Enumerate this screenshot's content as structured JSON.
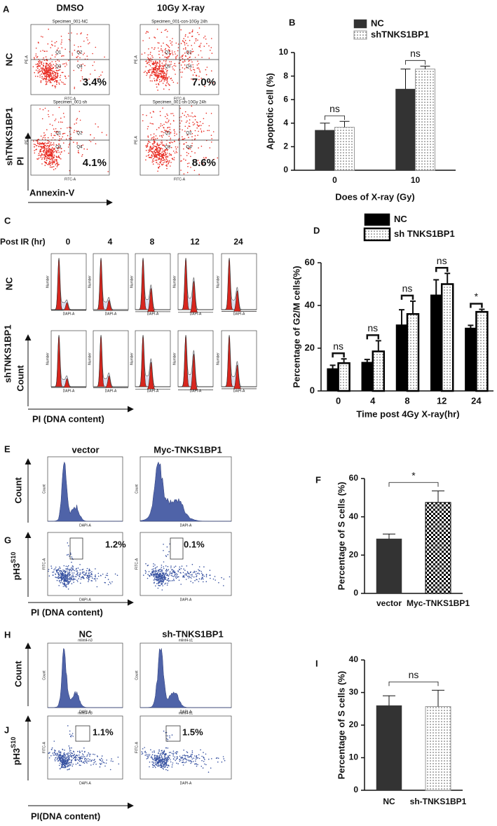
{
  "panel_a": {
    "letter": "A",
    "columns": [
      "DMSO",
      "10Gy X-ray"
    ],
    "rows": [
      "NC",
      "shTNKS1BP1"
    ],
    "y_label": "PI",
    "x_label": "Annexin-V",
    "plot_x_label": "FITC-A",
    "plot_y_label": "PE-A",
    "quadrants": [
      "Q1",
      "Q2",
      "Q3",
      "Q4"
    ],
    "plots": [
      {
        "title": "Specimen_001-NC",
        "percent": "3.4%"
      },
      {
        "title": "Specimen_001-con-10Gy 24h",
        "percent": "7.0%"
      },
      {
        "title": "Specimen_001-sh",
        "percent": "4.1%"
      },
      {
        "title": "Specimen_001-sh-10Gy 24h",
        "percent": "8.6%"
      }
    ]
  },
  "panel_c": {
    "letter": "C",
    "time_label": "Post IR (hr)",
    "times": [
      "0",
      "4",
      "8",
      "12",
      "24"
    ],
    "rows": [
      "NC",
      "shTNKS1BP1"
    ],
    "y_label": "Count",
    "x_label": "PI (DNA content)",
    "plot_y_label": "Number",
    "plot_x_label": "DAPI-A"
  },
  "panel_eg": {
    "letters": [
      "E",
      "G"
    ],
    "columns": [
      "vector",
      "Myc-TNKS1BP1"
    ],
    "hist_y_label": "Count",
    "scatter_y_label": "pH3",
    "scatter_y_sup": "S10",
    "x_label": "PI (DNA content)",
    "plot_x_label": "DAPI-A",
    "hist_plot_y_label": "Count",
    "scatter_plot_y_label": "FITC-A",
    "gate_percents": [
      "1.2%",
      "0.1%"
    ]
  },
  "panel_hj": {
    "letters": [
      "H",
      "J"
    ],
    "columns": [
      "NC",
      "sh-TNKS1BP1"
    ],
    "plot_titles": [
      "mlint4-n3",
      "mlint4-s1"
    ],
    "hist_y_label": "Count",
    "scatter_y_label": "pH3",
    "scatter_y_sup": "S10",
    "x_label": "PI(DNA content)",
    "plot_x_label": "DAPI-A",
    "hist_plot_y_label": "Count",
    "scatter_plot_y_label": "FITC-A",
    "gate_percents": [
      "1.1%",
      "1.5%"
    ]
  },
  "chart_data": [
    {
      "type": "bar",
      "label": "B",
      "y_label": "Apoptotic cell (%)",
      "x_label": "Does of X-ray (Gy)",
      "categories": [
        "0",
        "10"
      ],
      "series": [
        {
          "name": "NC",
          "fill": "solid",
          "color": "#333333",
          "values": [
            3.4,
            6.9
          ],
          "errors": [
            0.6,
            1.7
          ]
        },
        {
          "name": "shTNKS1BP1",
          "fill": "dots",
          "color": "#999999",
          "values": [
            3.65,
            8.6
          ],
          "errors": [
            0.5,
            0.25
          ]
        }
      ],
      "ylim": [
        0,
        10
      ],
      "yticks": [
        0,
        2,
        4,
        6,
        8,
        10
      ],
      "annotations": [
        "ns",
        "ns"
      ]
    },
    {
      "type": "bar",
      "label": "D",
      "y_label": "Percentage of G2/M cells(%)",
      "x_label": "Time post 4Gy X-ray(hr)",
      "categories": [
        "0",
        "4",
        "8",
        "12",
        "24"
      ],
      "series": [
        {
          "name": "NC",
          "fill": "solid",
          "color": "#000000",
          "values": [
            10.5,
            13.5,
            31,
            45,
            29.5
          ],
          "errors": [
            1.5,
            1.2,
            7,
            7,
            1.2
          ]
        },
        {
          "name": "sh TNKS1BP1",
          "fill": "dots",
          "color": "#000000",
          "values": [
            13,
            18.5,
            36,
            50,
            37
          ],
          "errors": [
            2,
            5,
            6,
            5,
            1.2
          ]
        }
      ],
      "ylim": [
        0,
        60
      ],
      "yticks": [
        0,
        20,
        40,
        60
      ],
      "annotations": [
        "ns",
        "ns",
        "ns",
        "ns",
        "*"
      ]
    },
    {
      "type": "bar",
      "label": "F",
      "y_label": "Percentage of S cells (%)",
      "categories": [
        "vector",
        "Myc-TNKS1BP1"
      ],
      "values": [
        28.5,
        47.5
      ],
      "errors": [
        2.5,
        6
      ],
      "fills": [
        "solid",
        "checker"
      ],
      "colors": [
        "#333333",
        "#000000"
      ],
      "ylim": [
        0,
        60
      ],
      "yticks": [
        0,
        20,
        40,
        60
      ],
      "annotation": "*"
    },
    {
      "type": "bar",
      "label": "I",
      "y_label": "Percentage of S cells (%)",
      "categories": [
        "NC",
        "sh-TNKS1BP1"
      ],
      "values": [
        26,
        25.7
      ],
      "errors": [
        3,
        5
      ],
      "fills": [
        "solid",
        "dots"
      ],
      "colors": [
        "#333333",
        "#999999"
      ],
      "ylim": [
        0,
        40
      ],
      "yticks": [
        0,
        10,
        20,
        30,
        40
      ],
      "annotation": "ns"
    }
  ]
}
